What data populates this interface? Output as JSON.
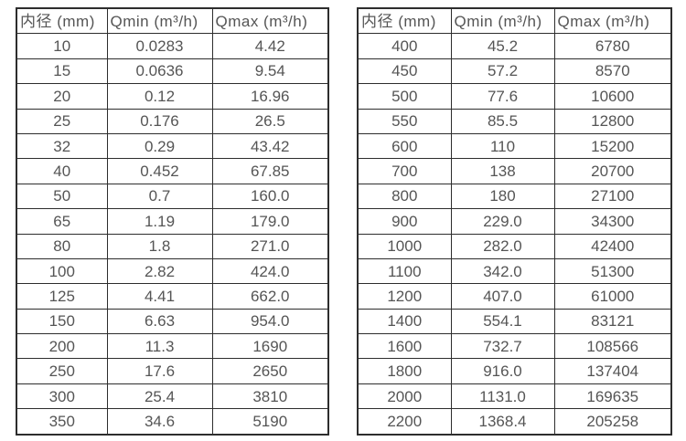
{
  "colors": {
    "border": "#2d2d2d",
    "text": "#555555",
    "background": "#ffffff"
  },
  "tables": [
    {
      "headers": [
        "内径 (mm)",
        "Qmin (m³/h)",
        "Qmax (m³/h)"
      ],
      "rows": [
        [
          "10",
          "0.0283",
          "4.42"
        ],
        [
          "15",
          "0.0636",
          "9.54"
        ],
        [
          "20",
          "0.12",
          "16.96"
        ],
        [
          "25",
          "0.176",
          "26.5"
        ],
        [
          "32",
          "0.29",
          "43.42"
        ],
        [
          "40",
          "0.452",
          "67.85"
        ],
        [
          "50",
          "0.7",
          "160.0"
        ],
        [
          "65",
          "1.19",
          "179.0"
        ],
        [
          "80",
          "1.8",
          "271.0"
        ],
        [
          "100",
          "2.82",
          "424.0"
        ],
        [
          "125",
          "4.41",
          "662.0"
        ],
        [
          "150",
          "6.63",
          "954.0"
        ],
        [
          "200",
          "11.3",
          "1690"
        ],
        [
          "250",
          "17.6",
          "2650"
        ],
        [
          "300",
          "25.4",
          "3810"
        ],
        [
          "350",
          "34.6",
          "5190"
        ]
      ]
    },
    {
      "headers": [
        "内径 (mm)",
        "Qmin (m³/h)",
        "Qmax (m³/h)"
      ],
      "rows": [
        [
          "400",
          "45.2",
          "6780"
        ],
        [
          "450",
          "57.2",
          "8570"
        ],
        [
          "500",
          "77.6",
          "10600"
        ],
        [
          "550",
          "85.5",
          "12800"
        ],
        [
          "600",
          "110",
          "15200"
        ],
        [
          "700",
          "138",
          "20700"
        ],
        [
          "800",
          "180",
          "27100"
        ],
        [
          "900",
          "229.0",
          "34300"
        ],
        [
          "1000",
          "282.0",
          "42400"
        ],
        [
          "1100",
          "342.0",
          "51300"
        ],
        [
          "1200",
          "407.0",
          "61000"
        ],
        [
          "1400",
          "554.1",
          "83121"
        ],
        [
          "1600",
          "732.7",
          "108566"
        ],
        [
          "1800",
          "916.0",
          "137404"
        ],
        [
          "2000",
          "1131.0",
          "169635"
        ],
        [
          "2200",
          "1368.4",
          "205258"
        ]
      ]
    }
  ],
  "chart_data": [
    {
      "type": "table",
      "title": "",
      "columns": [
        "内径 (mm)",
        "Qmin (m³/h)",
        "Qmax (m³/h)"
      ],
      "rows": [
        [
          10,
          0.0283,
          4.42
        ],
        [
          15,
          0.0636,
          9.54
        ],
        [
          20,
          0.12,
          16.96
        ],
        [
          25,
          0.176,
          26.5
        ],
        [
          32,
          0.29,
          43.42
        ],
        [
          40,
          0.452,
          67.85
        ],
        [
          50,
          0.7,
          160.0
        ],
        [
          65,
          1.19,
          179.0
        ],
        [
          80,
          1.8,
          271.0
        ],
        [
          100,
          2.82,
          424.0
        ],
        [
          125,
          4.41,
          662.0
        ],
        [
          150,
          6.63,
          954.0
        ],
        [
          200,
          11.3,
          1690
        ],
        [
          250,
          17.6,
          2650
        ],
        [
          300,
          25.4,
          3810
        ],
        [
          350,
          34.6,
          5190
        ]
      ]
    },
    {
      "type": "table",
      "title": "",
      "columns": [
        "内径 (mm)",
        "Qmin (m³/h)",
        "Qmax (m³/h)"
      ],
      "rows": [
        [
          400,
          45.2,
          6780
        ],
        [
          450,
          57.2,
          8570
        ],
        [
          500,
          77.6,
          10600
        ],
        [
          550,
          85.5,
          12800
        ],
        [
          600,
          110,
          15200
        ],
        [
          700,
          138,
          20700
        ],
        [
          800,
          180,
          27100
        ],
        [
          900,
          229.0,
          34300
        ],
        [
          1000,
          282.0,
          42400
        ],
        [
          1100,
          342.0,
          51300
        ],
        [
          1200,
          407.0,
          61000
        ],
        [
          1400,
          554.1,
          83121
        ],
        [
          1600,
          732.7,
          108566
        ],
        [
          1800,
          916.0,
          137404
        ],
        [
          2000,
          1131.0,
          169635
        ],
        [
          2200,
          1368.4,
          205258
        ]
      ]
    }
  ]
}
